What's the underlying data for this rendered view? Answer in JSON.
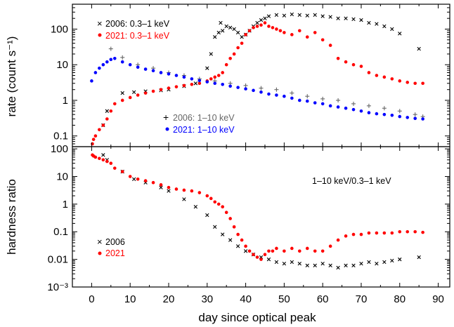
{
  "chart_data": {
    "type": "scatter",
    "xlabel": "day since optical peak",
    "x_ticks": [
      "0",
      "10",
      "20",
      "30",
      "40",
      "50",
      "60",
      "70",
      "80",
      "90"
    ],
    "xlim": [
      -5,
      93
    ],
    "panels": [
      {
        "ylabel": "rate (count s⁻¹)",
        "yscale": "log",
        "ylim": [
          0.05,
          500
        ],
        "y_ticks": [
          "0.1",
          "1",
          "10",
          "100"
        ],
        "legend_placement": [
          "top-left",
          "lower-middle"
        ],
        "series": [
          {
            "name": "2006: 0.3–1 keV",
            "color": "#000000",
            "marker": "x",
            "x": [
              3,
              4,
              8,
              11,
              14,
              18,
              20,
              24,
              27,
              30,
              31,
              32,
              33,
              33.5,
              34,
              35,
              36,
              37,
              38,
              39,
              40,
              41,
              42,
              43,
              44,
              45,
              46,
              48,
              50,
              52,
              54,
              56,
              58,
              60,
              62,
              64,
              66,
              68,
              70,
              72,
              74,
              76,
              78,
              80,
              85
            ],
            "y": [
              0.2,
              0.5,
              1.6,
              1.7,
              1.8,
              1.9,
              2,
              2.5,
              3,
              8,
              20,
              60,
              80,
              150,
              90,
              120,
              110,
              100,
              80,
              60,
              70,
              90,
              120,
              150,
              180,
              200,
              230,
              250,
              240,
              260,
              250,
              240,
              250,
              230,
              220,
              200,
              200,
              190,
              180,
              150,
              140,
              120,
              100,
              75,
              28
            ]
          },
          {
            "name": "2021: 0.3–1 keV",
            "color": "#ff0000",
            "marker": "dot",
            "x": [
              0.2,
              0.5,
              1,
              2,
              3,
              4,
              5,
              6,
              8,
              10,
              12,
              14,
              16,
              18,
              20,
              22,
              24,
              26,
              28,
              30,
              31,
              32,
              33,
              34,
              35,
              36,
              37,
              38,
              39,
              40,
              41,
              42,
              43,
              44,
              45,
              46,
              47,
              48,
              49,
              50,
              52,
              54,
              56,
              58,
              60,
              62,
              64,
              66,
              68,
              70,
              72,
              74,
              76,
              78,
              80,
              82,
              84,
              86
            ],
            "y": [
              0.06,
              0.08,
              0.1,
              0.15,
              0.2,
              0.3,
              0.5,
              0.8,
              1,
              1.2,
              1.4,
              1.6,
              1.8,
              2,
              2.2,
              2.4,
              2.6,
              2.8,
              3,
              3.5,
              4,
              4.5,
              5,
              6,
              10,
              15,
              20,
              30,
              40,
              70,
              90,
              110,
              120,
              130,
              150,
              120,
              110,
              100,
              90,
              80,
              70,
              90,
              60,
              80,
              50,
              35,
              15,
              12,
              10,
              9,
              6,
              5,
              4.5,
              4,
              3.5,
              3.2,
              3,
              3
            ]
          },
          {
            "name": "2006: 1–10 keV",
            "color": "#666666",
            "marker": "plus",
            "x": [
              5,
              8,
              12,
              16,
              20,
              24,
              28,
              32,
              36,
              40,
              44,
              48,
              52,
              56,
              60,
              64,
              68,
              72,
              76,
              80,
              84,
              86
            ],
            "y": [
              28,
              16,
              10,
              8,
              6,
              5,
              4,
              3.5,
              3,
              2.6,
              2.2,
              2,
              1.6,
              1.3,
              1.1,
              1,
              0.8,
              0.7,
              0.6,
              0.5,
              0.4,
              0.35
            ]
          },
          {
            "name": "2021: 1–10 keV",
            "color": "#0000ff",
            "marker": "dot",
            "x": [
              0,
              1,
              2,
              3,
              4,
              5,
              6,
              8,
              10,
              12,
              14,
              16,
              18,
              20,
              22,
              24,
              26,
              28,
              30,
              32,
              34,
              36,
              38,
              40,
              42,
              44,
              46,
              48,
              50,
              52,
              54,
              56,
              58,
              60,
              62,
              64,
              66,
              68,
              70,
              72,
              74,
              76,
              78,
              80,
              82,
              84,
              86
            ],
            "y": [
              3.5,
              6,
              8,
              10,
              12,
              14,
              15,
              12,
              10,
              8.5,
              7.5,
              6.8,
              6,
              5.5,
              5,
              4.5,
              4,
              3.6,
              3.3,
              3,
              2.8,
              2.5,
              2.3,
              2.1,
              1.9,
              1.7,
              1.5,
              1.4,
              1.3,
              1.15,
              1,
              0.95,
              0.85,
              0.8,
              0.7,
              0.65,
              0.6,
              0.55,
              0.5,
              0.45,
              0.42,
              0.4,
              0.38,
              0.35,
              0.33,
              0.31,
              0.3
            ]
          }
        ]
      },
      {
        "ylabel": "hardness ratio",
        "yscale": "log",
        "ylim": [
          0.001,
          120
        ],
        "y_ticks": [
          "100",
          "10",
          "1",
          "0.1",
          "0.01",
          "10⁻³"
        ],
        "annotation": "1–10 keV/0.3–1 keV",
        "legend_placement": "bottom-left",
        "series": [
          {
            "name": "2006",
            "color": "#000000",
            "marker": "x",
            "x": [
              3,
              4,
              8,
              11,
              14,
              18,
              20,
              24,
              27,
              30,
              32,
              34,
              36,
              38,
              40,
              42,
              44,
              46,
              48,
              50,
              52,
              54,
              56,
              58,
              60,
              62,
              64,
              66,
              68,
              70,
              72,
              74,
              76,
              78,
              80,
              85
            ],
            "y": [
              60,
              40,
              15,
              8,
              6,
              4,
              3,
              1.5,
              0.8,
              0.4,
              0.15,
              0.08,
              0.05,
              0.03,
              0.02,
              0.015,
              0.012,
              0.01,
              0.008,
              0.007,
              0.008,
              0.007,
              0.006,
              0.006,
              0.007,
              0.006,
              0.005,
              0.006,
              0.006,
              0.007,
              0.008,
              0.007,
              0.008,
              0.009,
              0.01,
              0.012
            ]
          },
          {
            "name": "2021",
            "color": "#ff0000",
            "marker": "dot",
            "x": [
              0.2,
              0.5,
              1,
              2,
              3,
              4,
              5,
              6,
              8,
              10,
              12,
              14,
              16,
              18,
              20,
              22,
              24,
              26,
              28,
              30,
              31,
              32,
              33,
              34,
              35,
              36,
              37,
              38,
              39,
              40,
              41,
              42,
              43,
              44,
              45,
              46,
              47,
              48,
              50,
              52,
              54,
              56,
              58,
              60,
              62,
              64,
              66,
              68,
              70,
              72,
              74,
              76,
              78,
              80,
              82,
              84,
              86
            ],
            "y": [
              60,
              55,
              50,
              45,
              40,
              35,
              30,
              20,
              15,
              10,
              8,
              7,
              6,
              5,
              4,
              3.5,
              3.2,
              3,
              2.6,
              2,
              1.6,
              1.2,
              1,
              0.8,
              0.5,
              0.3,
              0.15,
              0.08,
              0.05,
              0.03,
              0.02,
              0.015,
              0.012,
              0.01,
              0.015,
              0.02,
              0.02,
              0.025,
              0.02,
              0.025,
              0.02,
              0.025,
              0.02,
              0.02,
              0.03,
              0.05,
              0.07,
              0.08,
              0.08,
              0.09,
              0.09,
              0.09,
              0.09,
              0.1,
              0.1,
              0.1,
              0.095
            ]
          }
        ]
      }
    ]
  }
}
